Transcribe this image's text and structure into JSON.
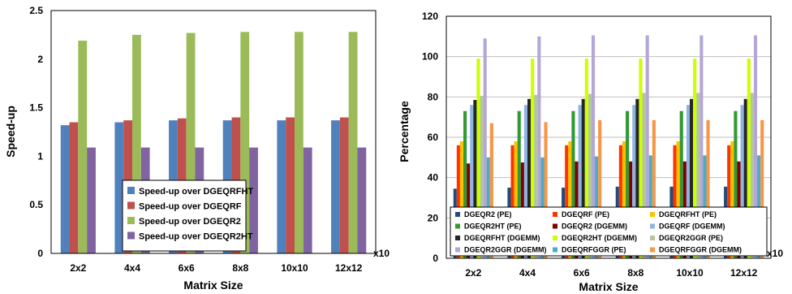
{
  "chart_data": [
    {
      "type": "bar",
      "title": "",
      "xlabel": "Matrix Size",
      "ylabel": "Speed-up",
      "x_unit_note": "x10",
      "categories": [
        "2x2",
        "4x4",
        "6x6",
        "8x8",
        "10x10",
        "12x12"
      ],
      "ylim": [
        0,
        2.5
      ],
      "yticks": [
        "0",
        "0.5",
        "1",
        "1.5",
        "2",
        "2.5"
      ],
      "legend_position": "bottom-center",
      "grid": false,
      "series": [
        {
          "name": "Speed-up over DGEQRFHT",
          "color": "#4F81BD",
          "values": [
            1.32,
            1.35,
            1.37,
            1.37,
            1.37,
            1.37
          ]
        },
        {
          "name": "Speed-up over DGEQRF",
          "color": "#C0504D",
          "values": [
            1.35,
            1.37,
            1.39,
            1.4,
            1.4,
            1.4
          ]
        },
        {
          "name": "Speed-up over DGEQR2",
          "color": "#9BBB59",
          "values": [
            2.19,
            2.25,
            2.27,
            2.28,
            2.28,
            2.28
          ]
        },
        {
          "name": "Speed-up over DGEQR2HT",
          "color": "#8064A2",
          "values": [
            1.09,
            1.09,
            1.09,
            1.09,
            1.09,
            1.09
          ]
        }
      ]
    },
    {
      "type": "bar",
      "title": "",
      "xlabel": "Matrix Size",
      "ylabel": "Percentage",
      "x_unit_note": "x10",
      "categories": [
        "2x2",
        "4x4",
        "6x6",
        "8x8",
        "10x10",
        "12x12"
      ],
      "ylim": [
        0,
        120
      ],
      "yticks": [
        "0",
        "20",
        "40",
        "60",
        "80",
        "100",
        "120"
      ],
      "legend_position": "bottom-center",
      "grid": true,
      "series": [
        {
          "name": "DGEQR2 (PE)",
          "color": "#1F4E79",
          "values": [
            34.5,
            35,
            35,
            35.5,
            35.5,
            35.5
          ]
        },
        {
          "name": "DGEQRF (PE)",
          "color": "#FF3300",
          "values": [
            56,
            56,
            56,
            56,
            56,
            56
          ]
        },
        {
          "name": "DGEQRFHT (PE)",
          "color": "#FFC000",
          "values": [
            58,
            58,
            58,
            58,
            58,
            58
          ]
        },
        {
          "name": "DGEQR2HT (PE)",
          "color": "#339933",
          "values": [
            73,
            73,
            73,
            73,
            73,
            73
          ]
        },
        {
          "name": "DGEQR2 (DGEMM)",
          "color": "#800000",
          "values": [
            47,
            47.5,
            48,
            48,
            48,
            48
          ]
        },
        {
          "name": "DGEQRF (DGEMM)",
          "color": "#8DB4E2",
          "values": [
            76,
            76,
            76,
            76,
            76,
            76
          ]
        },
        {
          "name": "DGEQRFHT (DGEMM)",
          "color": "#262626",
          "values": [
            78.5,
            79,
            79,
            79,
            79,
            79
          ]
        },
        {
          "name": "DGEQR2HT (DGEMM)",
          "color": "#CCFF00",
          "values": [
            99,
            99,
            99,
            99,
            99,
            99
          ]
        },
        {
          "name": "DGEQR2GGR (PE)",
          "color": "#B2C89A",
          "values": [
            80.5,
            81,
            81.5,
            82,
            82,
            82
          ]
        },
        {
          "name": "DGEQR2GGR (DGEMM)",
          "color": "#B4A7D6",
          "values": [
            109,
            110,
            110.5,
            110.5,
            110.5,
            110.5
          ]
        },
        {
          "name": "DGEQRFGGR (PE)",
          "color": "#4BACC6",
          "values": [
            50,
            50,
            50.5,
            51,
            51,
            51
          ]
        },
        {
          "name": "DGEQRFGGR (DGEMM)",
          "color": "#F79646",
          "values": [
            67,
            67.5,
            68.5,
            68.5,
            68.5,
            68.5
          ]
        }
      ]
    }
  ]
}
